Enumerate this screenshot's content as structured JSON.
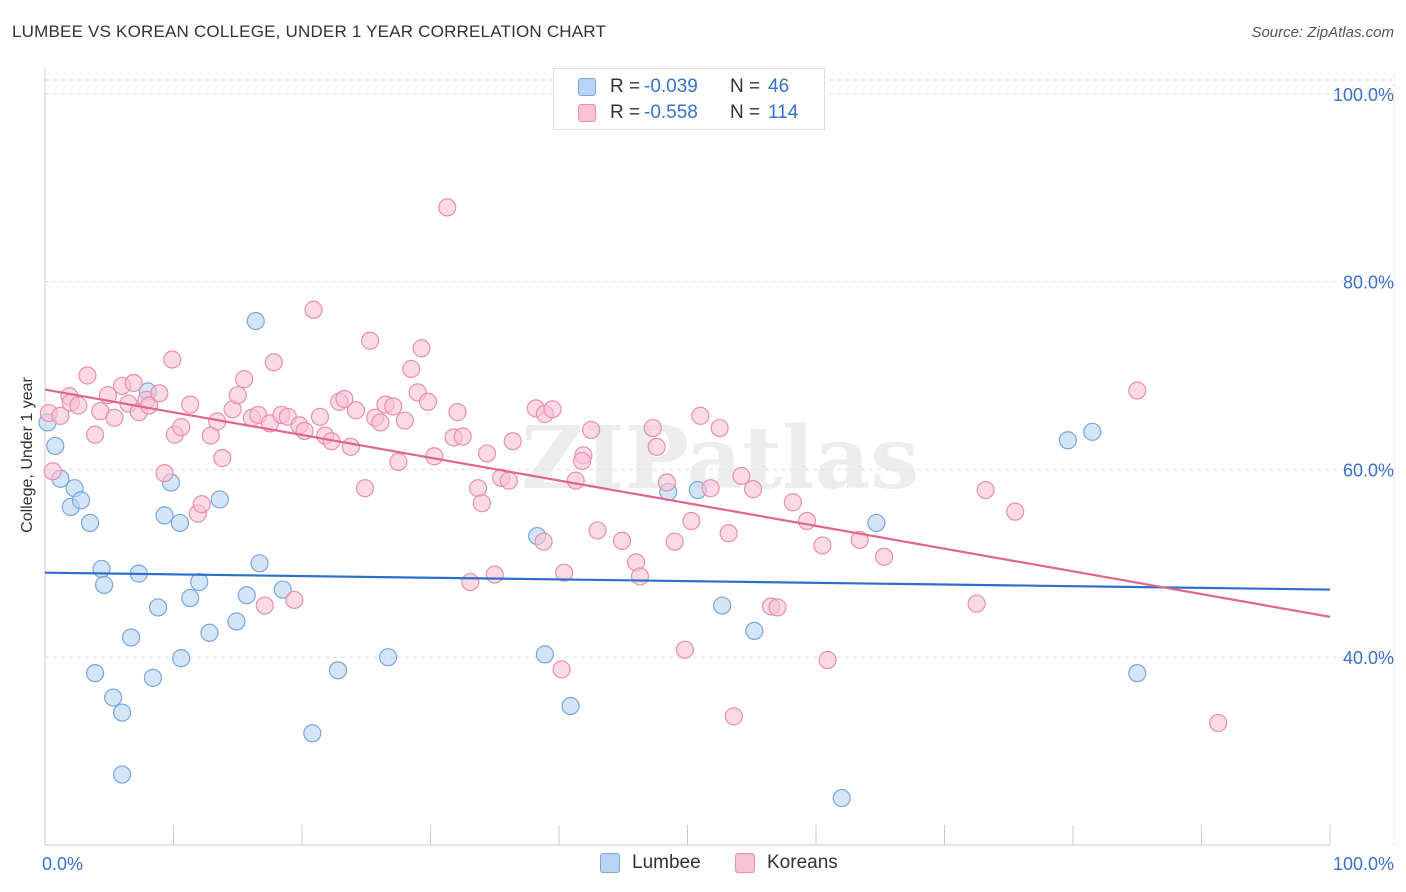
{
  "title": "LUMBEE VS KOREAN COLLEGE, UNDER 1 YEAR CORRELATION CHART",
  "source": "Source: ZipAtlas.com",
  "watermark": "ZIPatlas",
  "legend": {
    "rows": [
      {
        "r_label": "R =",
        "r_value": "-0.039",
        "n_label": "N =",
        "n_value": "46"
      },
      {
        "r_label": "R =",
        "r_value": "-0.558",
        "n_label": "N =",
        "n_value": "114"
      }
    ]
  },
  "bottom_legend": {
    "lumbee": "Lumbee",
    "koreans": "Koreans"
  },
  "colors": {
    "lumbee_fill": "#b8d3f3",
    "lumbee_stroke": "#7aa6de",
    "lumbee_line": "#2d6fcc",
    "koreans_fill": "#f8c2d5",
    "koreans_stroke": "#e98fb0",
    "koreans_line": "#e0658f",
    "axis_text": "#3a72c8",
    "grid": "#dddddd"
  },
  "chart_data": {
    "type": "scatter",
    "title": "LUMBEE VS KOREAN COLLEGE, UNDER 1 YEAR CORRELATION CHART",
    "xlabel": "",
    "ylabel": "College, Under 1 year",
    "xlim": [
      0,
      100
    ],
    "ylim": [
      20,
      102
    ],
    "x_tick_labels": {
      "min": "0.0%",
      "max": "100.0%"
    },
    "y_ticks": [
      40,
      60,
      80,
      100
    ],
    "y_tick_labels": [
      "40.0%",
      "60.0%",
      "80.0%",
      "100.0%"
    ],
    "grid": true,
    "series": [
      {
        "name": "Lumbee",
        "r": -0.039,
        "n": 46,
        "trend": {
          "x": [
            0,
            100
          ],
          "y": [
            49.0,
            47.2
          ]
        },
        "points": [
          [
            0.2,
            65.0
          ],
          [
            0.8,
            62.5
          ],
          [
            1.2,
            59.0
          ],
          [
            2.0,
            56.0
          ],
          [
            2.3,
            58.0
          ],
          [
            2.8,
            56.7
          ],
          [
            3.5,
            54.3
          ],
          [
            3.9,
            38.3
          ],
          [
            4.4,
            49.4
          ],
          [
            4.6,
            47.7
          ],
          [
            5.3,
            35.7
          ],
          [
            6.0,
            34.1
          ],
          [
            6.0,
            27.5
          ],
          [
            6.7,
            42.1
          ],
          [
            7.3,
            48.9
          ],
          [
            8.0,
            68.3
          ],
          [
            8.4,
            37.8
          ],
          [
            8.8,
            45.3
          ],
          [
            9.3,
            55.1
          ],
          [
            9.8,
            58.6
          ],
          [
            10.5,
            54.3
          ],
          [
            10.6,
            39.9
          ],
          [
            11.3,
            46.3
          ],
          [
            12.0,
            48.0
          ],
          [
            12.8,
            42.6
          ],
          [
            13.6,
            56.8
          ],
          [
            14.9,
            43.8
          ],
          [
            15.7,
            46.6
          ],
          [
            16.4,
            75.8
          ],
          [
            16.7,
            50.0
          ],
          [
            18.5,
            47.2
          ],
          [
            20.8,
            31.9
          ],
          [
            22.8,
            38.6
          ],
          [
            26.7,
            40.0
          ],
          [
            38.3,
            52.9
          ],
          [
            38.9,
            40.3
          ],
          [
            40.9,
            34.8
          ],
          [
            48.5,
            57.6
          ],
          [
            50.8,
            57.8
          ],
          [
            52.7,
            45.5
          ],
          [
            55.2,
            42.8
          ],
          [
            62.0,
            25.0
          ],
          [
            64.7,
            54.3
          ],
          [
            79.6,
            63.1
          ],
          [
            81.5,
            64.0
          ],
          [
            85.0,
            38.3
          ]
        ]
      },
      {
        "name": "Koreans",
        "r": -0.558,
        "n": 114,
        "trend": {
          "x": [
            0,
            100
          ],
          "y": [
            68.5,
            44.3
          ]
        },
        "points": [
          [
            0.3,
            66.0
          ],
          [
            0.6,
            59.8
          ],
          [
            1.2,
            65.7
          ],
          [
            1.9,
            67.8
          ],
          [
            2.0,
            67.1
          ],
          [
            2.6,
            66.8
          ],
          [
            3.3,
            70.0
          ],
          [
            3.9,
            63.7
          ],
          [
            4.3,
            66.2
          ],
          [
            4.9,
            67.9
          ],
          [
            5.4,
            65.5
          ],
          [
            6.0,
            68.9
          ],
          [
            6.5,
            67.0
          ],
          [
            6.9,
            69.2
          ],
          [
            7.3,
            66.1
          ],
          [
            7.9,
            67.4
          ],
          [
            8.1,
            66.8
          ],
          [
            8.9,
            68.1
          ],
          [
            9.3,
            59.6
          ],
          [
            9.9,
            71.7
          ],
          [
            10.1,
            63.7
          ],
          [
            10.6,
            64.5
          ],
          [
            11.3,
            66.9
          ],
          [
            11.9,
            55.3
          ],
          [
            12.2,
            56.3
          ],
          [
            12.9,
            63.6
          ],
          [
            13.4,
            65.1
          ],
          [
            13.8,
            61.2
          ],
          [
            14.6,
            66.4
          ],
          [
            15.0,
            67.9
          ],
          [
            15.5,
            69.6
          ],
          [
            16.1,
            65.5
          ],
          [
            16.6,
            65.8
          ],
          [
            17.1,
            45.5
          ],
          [
            17.5,
            64.9
          ],
          [
            17.8,
            71.4
          ],
          [
            18.4,
            65.8
          ],
          [
            18.9,
            65.6
          ],
          [
            19.4,
            46.1
          ],
          [
            19.8,
            64.7
          ],
          [
            20.2,
            64.1
          ],
          [
            20.9,
            77.0
          ],
          [
            21.4,
            65.6
          ],
          [
            21.8,
            63.6
          ],
          [
            22.3,
            63.0
          ],
          [
            22.9,
            67.2
          ],
          [
            23.3,
            67.5
          ],
          [
            23.8,
            62.4
          ],
          [
            24.2,
            66.3
          ],
          [
            24.9,
            58.0
          ],
          [
            25.3,
            73.7
          ],
          [
            25.7,
            65.5
          ],
          [
            26.1,
            65.0
          ],
          [
            26.5,
            66.9
          ],
          [
            27.1,
            66.7
          ],
          [
            27.5,
            60.8
          ],
          [
            28.0,
            65.2
          ],
          [
            28.5,
            70.7
          ],
          [
            29.0,
            68.2
          ],
          [
            29.3,
            72.9
          ],
          [
            29.8,
            67.2
          ],
          [
            30.3,
            61.4
          ],
          [
            31.3,
            87.9
          ],
          [
            31.8,
            63.4
          ],
          [
            32.1,
            66.1
          ],
          [
            32.5,
            63.5
          ],
          [
            33.1,
            48.0
          ],
          [
            33.7,
            58.0
          ],
          [
            34.0,
            56.4
          ],
          [
            34.4,
            61.7
          ],
          [
            35.0,
            48.8
          ],
          [
            35.5,
            59.1
          ],
          [
            36.1,
            58.8
          ],
          [
            36.4,
            63.0
          ],
          [
            38.2,
            66.5
          ],
          [
            38.8,
            52.3
          ],
          [
            38.9,
            65.9
          ],
          [
            39.5,
            66.4
          ],
          [
            40.2,
            38.7
          ],
          [
            40.4,
            49.0
          ],
          [
            41.3,
            58.8
          ],
          [
            41.9,
            61.5
          ],
          [
            42.5,
            64.2
          ],
          [
            43.0,
            53.5
          ],
          [
            44.9,
            52.4
          ],
          [
            46.0,
            50.1
          ],
          [
            46.3,
            48.6
          ],
          [
            47.3,
            64.4
          ],
          [
            47.6,
            62.4
          ],
          [
            48.4,
            58.6
          ],
          [
            49.0,
            52.3
          ],
          [
            49.8,
            40.8
          ],
          [
            50.3,
            54.5
          ],
          [
            51.0,
            65.7
          ],
          [
            51.8,
            58.0
          ],
          [
            52.5,
            64.4
          ],
          [
            53.2,
            53.2
          ],
          [
            53.6,
            33.7
          ],
          [
            54.2,
            59.3
          ],
          [
            55.1,
            57.9
          ],
          [
            56.5,
            45.4
          ],
          [
            57.0,
            45.3
          ],
          [
            58.2,
            56.5
          ],
          [
            59.3,
            54.5
          ],
          [
            60.5,
            51.9
          ],
          [
            60.9,
            39.7
          ],
          [
            63.4,
            52.5
          ],
          [
            65.3,
            50.7
          ],
          [
            72.5,
            45.7
          ],
          [
            73.2,
            57.8
          ],
          [
            75.5,
            55.5
          ],
          [
            85.0,
            68.4
          ],
          [
            91.3,
            33.0
          ],
          [
            41.8,
            60.9
          ]
        ]
      }
    ]
  }
}
